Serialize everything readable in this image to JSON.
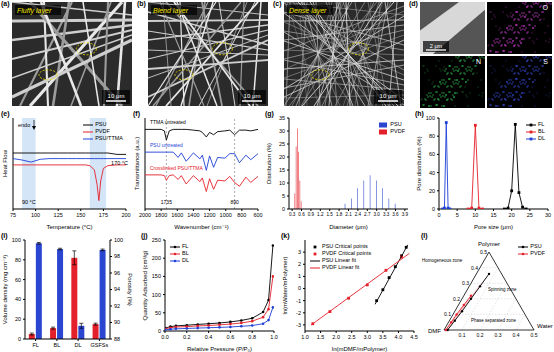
{
  "images": [
    {
      "panel": "(a)",
      "label": "Fluffy layer",
      "scale_bar": "10 μm"
    },
    {
      "panel": "(b)",
      "label": "Blend layer",
      "scale_bar": "10 μm"
    },
    {
      "panel": "(c)",
      "label": "Dense layer",
      "scale_bar": "10 μm"
    },
    {
      "panel": "(d)",
      "scale_bar": "2 μm",
      "maps": [
        "O",
        "N",
        "S"
      ]
    }
  ],
  "chart_data": [
    {
      "panel": "(e)",
      "type": "line",
      "x_label": "Temperature (°C)",
      "y_label": "Heat Flow",
      "annotation": "endo",
      "bands": [
        {
          "range": [
            85,
            100
          ],
          "label": "90 °C"
        },
        {
          "range": [
            160,
            178
          ],
          "label": "170 °C"
        }
      ],
      "x": [
        75,
        85,
        95,
        105,
        115,
        125,
        135,
        145,
        155,
        160,
        165,
        168,
        170,
        172,
        175,
        180,
        190,
        200
      ],
      "series": [
        {
          "name": "PSU",
          "color": "#000000",
          "values": [
            8,
            8,
            8,
            8,
            8,
            8,
            8,
            8,
            8,
            8,
            8,
            8,
            8,
            8,
            8,
            8,
            7.8,
            7.8
          ]
        },
        {
          "name": "PVDF",
          "color": "#e4202a",
          "values": [
            6.3,
            6.3,
            6.3,
            6.3,
            6.3,
            6.3,
            6.3,
            6.3,
            6.3,
            6.2,
            5.6,
            3.5,
            1.2,
            4,
            5.8,
            6.2,
            6.3,
            6.3
          ]
        },
        {
          "name": "PSU/TTMA",
          "color": "#1d3fd6",
          "values": [
            7.2,
            7,
            6.7,
            7.1,
            7.2,
            7.2,
            7.2,
            7.2,
            7.2,
            7.2,
            7.2,
            7.2,
            7.2,
            7.2,
            7.2,
            7.2,
            7.2,
            7.2
          ]
        }
      ],
      "xlim": [
        75,
        200
      ],
      "xticks": [
        75,
        100,
        125,
        150,
        175,
        200
      ],
      "ylim": [
        0,
        13
      ],
      "tick_labels": "x",
      "legend": "upper right"
    },
    {
      "panel": "(f)",
      "type": "line",
      "x_label": "Wavenumber (cm⁻¹)",
      "y_label": "Transmittance (a.u.)",
      "peaks": [
        1735,
        890
      ],
      "x": [
        2000,
        1900,
        1800,
        1760,
        1735,
        1700,
        1650,
        1590,
        1550,
        1490,
        1400,
        1320,
        1290,
        1240,
        1200,
        1150,
        1100,
        1010,
        950,
        890,
        830,
        750,
        690,
        600
      ],
      "series": [
        {
          "name": "TTMA untreated",
          "color": "#000000",
          "values": [
            9,
            9,
            9,
            8.8,
            7.6,
            8.8,
            9,
            9,
            9,
            9,
            8.9,
            8.8,
            8.6,
            8,
            8.6,
            8.3,
            8.7,
            8.8,
            8.9,
            8.3,
            8.9,
            8.9,
            8.8,
            9
          ]
        },
        {
          "name": "PSU untreated",
          "color": "#1d3fd6",
          "values": [
            6,
            6,
            6,
            6,
            6,
            6,
            6,
            5.3,
            5.9,
            4.8,
            5.9,
            5.1,
            5.6,
            3.6,
            5.5,
            4,
            5.3,
            5.2,
            5.8,
            5.8,
            4.6,
            5.6,
            5,
            5.8
          ]
        },
        {
          "name": "Crosslinked PSU/TTMA",
          "color": "#e4202a",
          "values": [
            3,
            3,
            3,
            2.9,
            2.3,
            2.9,
            3,
            2.4,
            2.9,
            1.8,
            2.9,
            2.1,
            2.6,
            0.8,
            2.5,
            1.1,
            2.3,
            2.2,
            2.8,
            2,
            1.5,
            2.7,
            2,
            2.8
          ]
        }
      ],
      "xlim": [
        2000,
        600
      ],
      "xticks": [
        2000,
        1800,
        1600,
        1400,
        1200,
        1000,
        800,
        600
      ],
      "ylim": [
        -1.5,
        10.5
      ],
      "tick_labels": "x",
      "legend": "inline"
    },
    {
      "panel": "(g)",
      "type": "bar",
      "x_label": "Diameter (μm)",
      "y_label": "Distribution (%)",
      "series": [
        {
          "name": "PSU",
          "color": "#2a45d0",
          "x": [
            2,
            2.2,
            2.4,
            2.6,
            2.8,
            3,
            3.2,
            3.4,
            3.6
          ],
          "values": [
            2,
            4,
            8,
            11,
            13,
            11,
            8,
            4,
            2
          ]
        },
        {
          "name": "PVDF",
          "color": "#e4202a",
          "x": [
            0.38,
            0.42,
            0.46,
            0.5,
            0.54,
            0.58
          ],
          "values": [
            6,
            24,
            31,
            22,
            11,
            3
          ]
        }
      ],
      "xlim": [
        0.2,
        4
      ],
      "xticks": [
        0.3,
        0.6,
        0.9,
        1.2,
        1.5,
        1.8,
        2.1,
        2.4,
        2.7,
        {
          "value": 3,
          "label": "3.0"
        },
        3.3,
        3.6,
        3.9
      ],
      "ylim": [
        0,
        35
      ],
      "yticks": [
        0,
        5,
        10,
        15,
        20,
        25,
        30,
        35
      ],
      "legend": "upper right"
    },
    {
      "panel": "(h)",
      "type": "line",
      "x_label": "Pore size (μm)",
      "y_label": "Pore distribution (%)",
      "marker": "square",
      "series": [
        {
          "name": "FL",
          "color": "#000000",
          "x": [
            18,
            19,
            20,
            21,
            22,
            23,
            24
          ],
          "values": [
            0,
            1,
            20,
            93,
            18,
            2,
            0
          ]
        },
        {
          "name": "BL",
          "color": "#e4202a",
          "x": [
            8,
            9,
            10,
            11,
            12
          ],
          "values": [
            0,
            1,
            92,
            1,
            0
          ]
        },
        {
          "name": "DL",
          "color": "#1d3fd6",
          "x": [
            1,
            1.5,
            2,
            2.5,
            3
          ],
          "values": [
            0,
            1,
            95,
            1,
            0
          ]
        }
      ],
      "xlim": [
        0,
        30
      ],
      "xticks": [
        0,
        5,
        10,
        15,
        20,
        25,
        30
      ],
      "ylim": [
        0,
        100
      ],
      "yticks": [
        0,
        20,
        40,
        60,
        80,
        100
      ],
      "legend": "upper right"
    },
    {
      "panel": "(i)",
      "type": "bar",
      "y_label": "Volume density (mg cm⁻³)",
      "y2_label": "Porosity (%)",
      "categories": [
        "FL",
        "BL",
        "DL",
        "GSFSs"
      ],
      "series": [
        {
          "color": "#e4202a",
          "values": [
            5,
            11,
            82,
            15
          ],
          "errors": [
            1,
            1,
            7,
            1
          ]
        },
        {
          "color": "#2a45d0",
          "axis": "y2",
          "values": [
            99.6,
            98.9,
            89.6,
            98.8
          ],
          "errors": [
            0.1,
            0.1,
            0.3,
            0.1
          ]
        }
      ],
      "ylim": [
        0,
        100
      ],
      "yticks": [
        0,
        20,
        40,
        60,
        80,
        100
      ],
      "y2lim": [
        88,
        100
      ],
      "y2ticks": [
        88,
        90,
        92,
        94,
        96,
        98,
        100
      ]
    },
    {
      "panel": "(j)",
      "type": "line",
      "x_label": "Relative Pressure (P/P₀)",
      "y_label": "Quantity Adsorbed (cm³/g)",
      "marker": "circle",
      "x": [
        0,
        0.05,
        0.1,
        0.2,
        0.3,
        0.4,
        0.5,
        0.6,
        0.7,
        0.8,
        0.9,
        0.95,
        0.99
      ],
      "series": [
        {
          "name": "FL",
          "color": "#000000",
          "values": [
            8,
            12,
            14,
            16,
            18,
            20,
            22,
            25,
            29,
            35,
            52,
            85,
            235
          ]
        },
        {
          "name": "BL",
          "color": "#e4202a",
          "values": [
            6,
            9,
            11,
            12,
            14,
            15,
            17,
            19,
            22,
            27,
            38,
            60,
            150
          ]
        },
        {
          "name": "DL",
          "color": "#1d3fd6",
          "values": [
            3,
            5,
            6,
            7,
            8,
            9,
            10,
            11,
            13,
            15,
            20,
            30,
            65
          ]
        }
      ],
      "xlim": [
        0,
        1
      ],
      "xticks": [
        {
          "value": 0,
          "label": "0.0"
        },
        0.2,
        0.4,
        0.6,
        0.8,
        {
          "value": 1,
          "label": "1.0"
        }
      ],
      "ylim": [
        0,
        250
      ],
      "yticks": [
        0,
        50,
        100,
        150,
        200,
        250
      ],
      "legend": "upper left"
    },
    {
      "panel": "(k)",
      "type": "scatter",
      "x_label": "ln(mDMF/mPolymer)",
      "y_label": "ln(mWater/mPolymer)",
      "series": [
        {
          "name": "PSU Critical points",
          "color": "#000000",
          "type": "scatter",
          "marker": "square",
          "x": [
            3.3,
            3.5,
            3.7,
            3.9,
            4.1,
            4.25
          ],
          "values": [
            -1,
            -0.1,
            0.9,
            1.8,
            2.7,
            3.4
          ]
        },
        {
          "name": "PVDF Critical points",
          "color": "#e4202a",
          "type": "scatter",
          "marker": "square",
          "x": [
            1.25,
            1.8,
            2.4,
            3,
            3.6,
            4.1
          ],
          "values": [
            -2.9,
            -1.9,
            -0.8,
            0.3,
            1.5,
            2.6
          ]
        },
        {
          "name": "PSU Linear fit",
          "color": "#000000",
          "type": "line",
          "x": [
            3.25,
            4.3
          ],
          "values": [
            -1.3,
            3.6
          ]
        },
        {
          "name": "PVDF Linear fit",
          "color": "#e4202a",
          "type": "line",
          "x": [
            1.2,
            4.35
          ],
          "values": [
            -3,
            2.9
          ]
        }
      ],
      "xlim": [
        1,
        4.5
      ],
      "xticks": [
        {
          "value": 1,
          "label": "1.0"
        },
        1.5,
        {
          "value": 2,
          "label": "2.0"
        },
        2.5,
        {
          "value": 3,
          "label": "3.0"
        },
        3.5,
        {
          "value": 4,
          "label": "4.0"
        },
        4.5
      ],
      "ylim": [
        -3.5,
        4
      ],
      "yticks": [
        -3,
        -2,
        -1,
        0,
        1,
        2,
        3
      ],
      "legend": "upper left"
    },
    {
      "panel": "(l)",
      "type": "ternary",
      "axes": [
        {
          "label": "Polymer",
          "ticks": [
            0.1,
            0.2,
            0.3,
            0.4,
            0.5
          ]
        },
        {
          "label": "Water",
          "ticks": [
            0.1,
            0.2,
            0.3,
            0.4,
            0.5
          ]
        },
        {
          "label": "DMF"
        }
      ],
      "lim": [
        0,
        0.5
      ],
      "zones": [
        "Homogeneous zone",
        "Spinning zone",
        "Phase separated zone"
      ],
      "marker": "circle",
      "series": [
        {
          "name": "PSU",
          "color": "#000000",
          "water": [
            0.02,
            0.03,
            0.04,
            0.05,
            0.06,
            0.07
          ],
          "polymer": [
            0,
            0.06,
            0.12,
            0.2,
            0.28,
            0.36
          ]
        },
        {
          "name": "PVDF",
          "color": "#e4202a",
          "water": [
            0.01,
            0.015,
            0.02,
            0.03,
            0.04
          ],
          "polymer": [
            0,
            0.05,
            0.1,
            0.16,
            0.22
          ]
        }
      ],
      "legend": "upper right"
    }
  ]
}
